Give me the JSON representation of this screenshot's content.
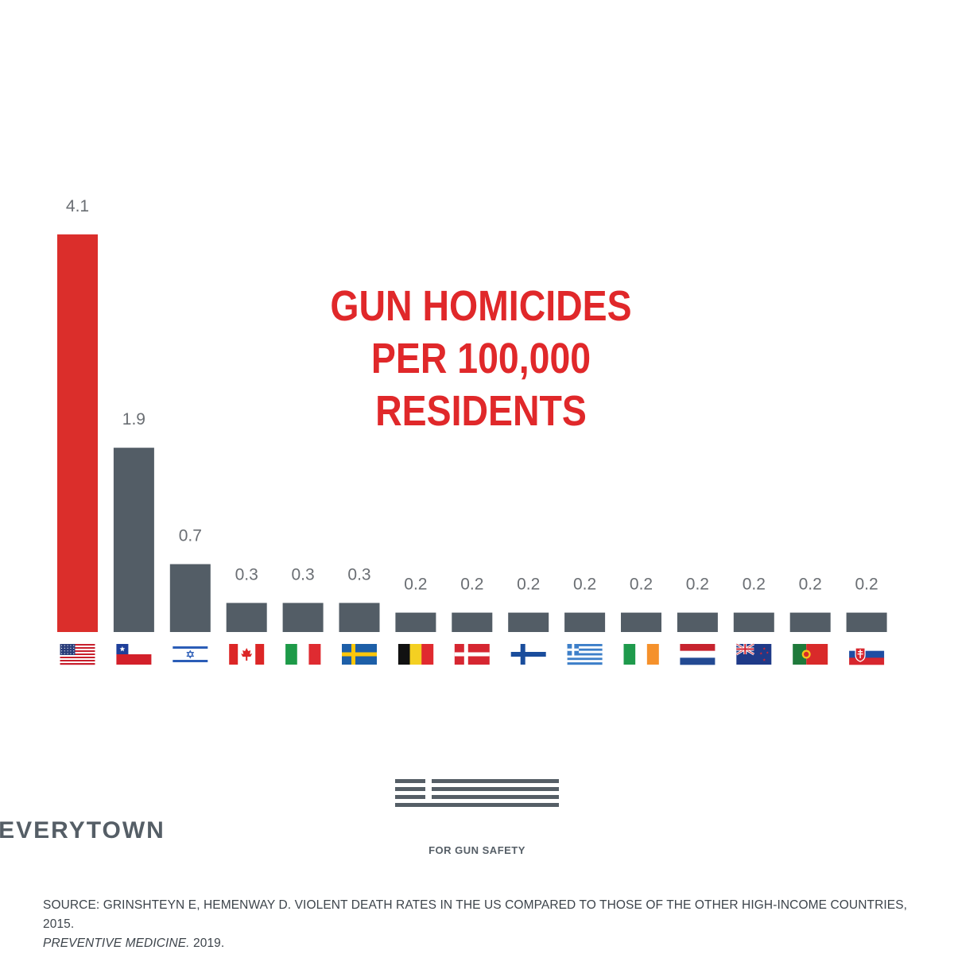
{
  "chart_data": {
    "type": "bar",
    "title_lines": [
      "GUN HOMICIDES",
      "PER 100,000 RESIDENTS"
    ],
    "categories": [
      "United States",
      "Chile",
      "Israel",
      "Canada",
      "Italy",
      "Sweden",
      "Belgium",
      "Denmark",
      "Finland",
      "Greece",
      "Ireland",
      "Netherlands",
      "New Zealand",
      "Portugal",
      "Slovakia"
    ],
    "values": [
      4.1,
      1.9,
      0.7,
      0.3,
      0.3,
      0.3,
      0.2,
      0.2,
      0.2,
      0.2,
      0.2,
      0.2,
      0.2,
      0.2,
      0.2
    ],
    "value_labels": [
      "4.1",
      "1.9",
      "0.7",
      "0.3",
      "0.3",
      "0.3",
      "0.2",
      "0.2",
      "0.2",
      "0.2",
      "0.2",
      "0.2",
      "0.2",
      "0.2",
      "0.2"
    ],
    "flag_icons": [
      "us-flag-icon",
      "chile-flag-icon",
      "israel-flag-icon",
      "canada-flag-icon",
      "italy-flag-icon",
      "sweden-flag-icon",
      "belgium-flag-icon",
      "denmark-flag-icon",
      "finland-flag-icon",
      "greece-flag-icon",
      "ireland-flag-icon",
      "netherlands-flag-icon",
      "new-zealand-flag-icon",
      "portugal-flag-icon",
      "slovakia-flag-icon"
    ],
    "highlight_index": 0,
    "colors": {
      "highlight": "#db2e2b",
      "bar": "#535d66",
      "label": "#6a6e73"
    },
    "grid": false,
    "legend": "none"
  },
  "logo": {
    "name": "EVERYTOWN",
    "tagline": "FOR GUN SAFETY",
    "color": "#555e66"
  },
  "source": {
    "line1": "SOURCE: GRINSHTEYN E, HEMENWAY D. VIOLENT DEATH RATES IN THE US COMPARED TO THOSE OF THE OTHER HIGH-INCOME COUNTRIES, 2015.",
    "journal": "PREVENTIVE MEDICINE.",
    "year": " 2019."
  }
}
